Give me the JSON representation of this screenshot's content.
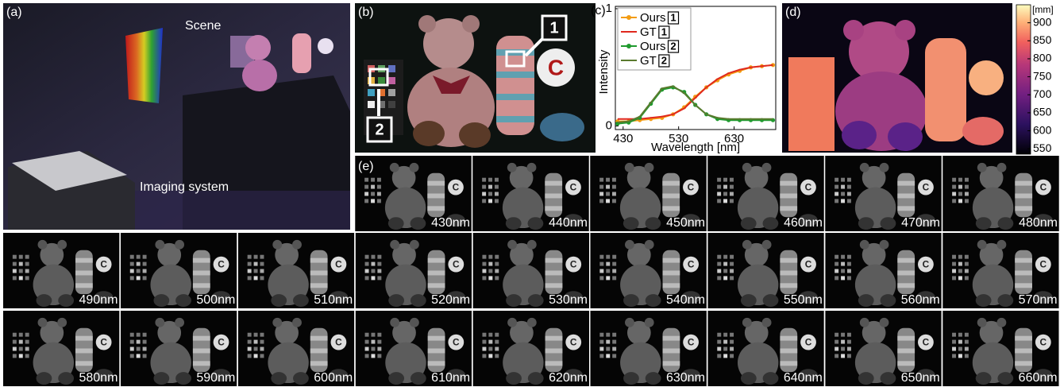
{
  "panels": {
    "a": {
      "label": "(a)",
      "annotations": [
        "Scene",
        "Imaging system"
      ]
    },
    "b": {
      "label": "(b)",
      "markers": [
        "1",
        "2"
      ]
    },
    "c": {
      "label": "(c)",
      "chart_data": {
        "type": "line",
        "xlabel": "Wavelength [nm]",
        "ylabel": "Intensity",
        "x": [
          420,
          440,
          460,
          480,
          500,
          520,
          540,
          560,
          580,
          600,
          620,
          640,
          660,
          680,
          700
        ],
        "series": [
          {
            "name": "Ours",
            "tag": "1",
            "color": "#f39c12",
            "markers": true,
            "values": [
              0.04,
              0.04,
              0.05,
              0.06,
              0.07,
              0.1,
              0.16,
              0.25,
              0.33,
              0.39,
              0.44,
              0.47,
              0.5,
              0.51,
              0.52
            ]
          },
          {
            "name": "GT",
            "tag": "1",
            "color": "#e0281e",
            "markers": false,
            "values": [
              0.06,
              0.06,
              0.06,
              0.07,
              0.08,
              0.1,
              0.15,
              0.24,
              0.33,
              0.4,
              0.45,
              0.48,
              0.5,
              0.51,
              0.52
            ]
          },
          {
            "name": "Ours",
            "tag": "2",
            "color": "#1f9a2e",
            "markers": true,
            "values": [
              0.02,
              0.03,
              0.07,
              0.19,
              0.31,
              0.33,
              0.29,
              0.18,
              0.1,
              0.06,
              0.05,
              0.05,
              0.05,
              0.05,
              0.05
            ]
          },
          {
            "name": "GT",
            "tag": "2",
            "color": "#5a7a2e",
            "markers": false,
            "values": [
              0.03,
              0.04,
              0.08,
              0.2,
              0.32,
              0.34,
              0.28,
              0.18,
              0.1,
              0.07,
              0.06,
              0.06,
              0.06,
              0.06,
              0.06
            ]
          }
        ],
        "xlim": [
          416,
          705
        ],
        "ylim": [
          -0.03,
          1.02
        ],
        "xticks": [
          430,
          530,
          630
        ],
        "yticks": [
          0,
          1
        ],
        "grid": false,
        "legend": "upper left"
      }
    },
    "d": {
      "label": "(d)",
      "colorbar": {
        "unit": "[mm]",
        "lim": [
          535,
          950
        ],
        "ticks": [
          550,
          600,
          650,
          700,
          750,
          800,
          850,
          900
        ]
      }
    },
    "e": {
      "label": "(e)",
      "wavelength_labels": [
        "430nm",
        "440nm",
        "450nm",
        "460nm",
        "470nm",
        "480nm",
        "490nm",
        "500nm",
        "510nm",
        "520nm",
        "530nm",
        "540nm",
        "550nm",
        "560nm",
        "570nm",
        "580nm",
        "590nm",
        "600nm",
        "610nm",
        "620nm",
        "630nm",
        "640nm",
        "650nm",
        "660nm"
      ]
    }
  }
}
